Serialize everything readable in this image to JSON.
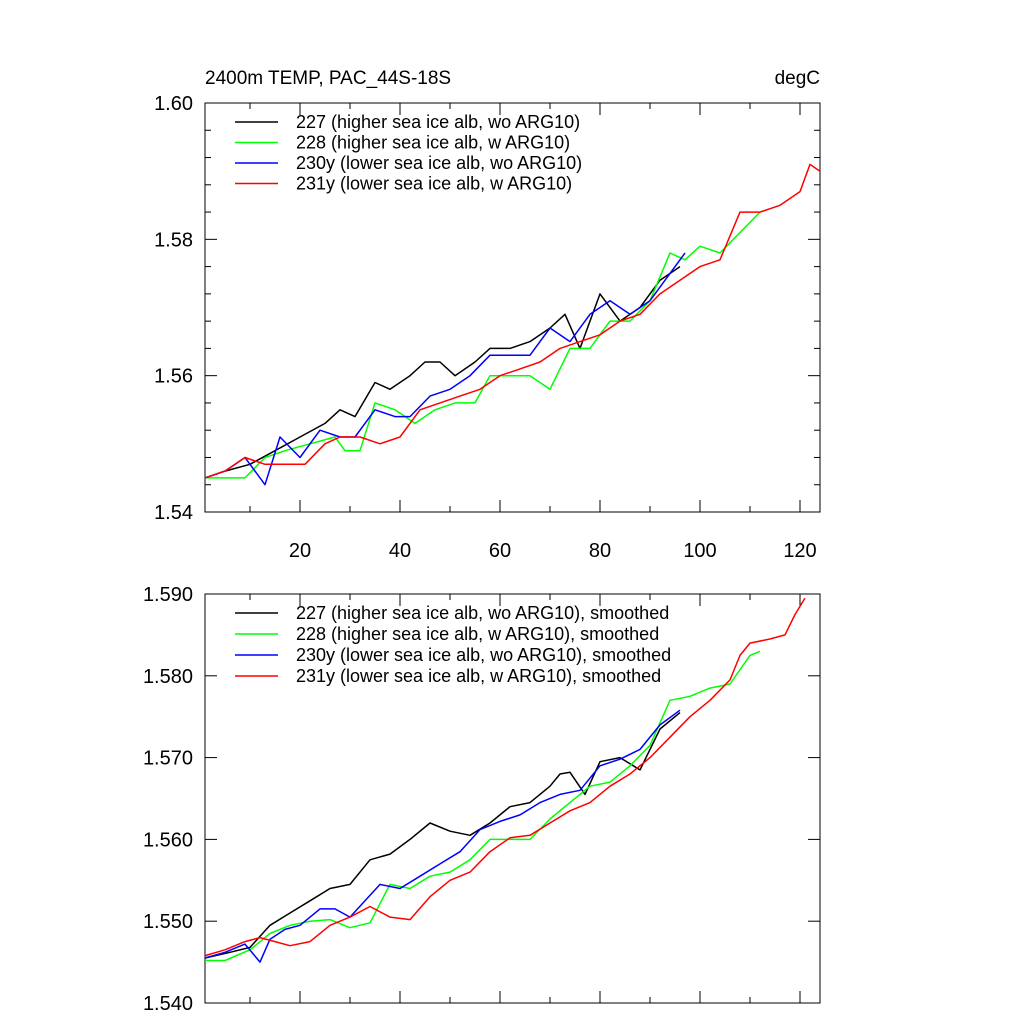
{
  "colors": {
    "s227": "#000000",
    "s228": "#00ff00",
    "s230y": "#0000ff",
    "s231y": "#ff0000"
  },
  "chart_data": [
    {
      "type": "line",
      "title_left": "2400m TEMP, PAC_44S-18S",
      "title_right": "degC",
      "xlim": [
        1,
        124
      ],
      "ylim": [
        1.54,
        1.6
      ],
      "x_ticks": [
        20,
        40,
        60,
        80,
        100,
        120
      ],
      "x_tick_labels": [
        "20",
        "40",
        "60",
        "80",
        "100",
        "120"
      ],
      "y_ticks": [
        1.54,
        1.56,
        1.58,
        1.6
      ],
      "y_tick_labels": [
        "1.54",
        "1.56",
        "1.58",
        "1.60"
      ],
      "legend_position": "top-left",
      "series": [
        {
          "name": "227 (higher sea ice alb, wo ARG10)",
          "color_key": "s227",
          "x": [
            1,
            5,
            10,
            15,
            20,
            25,
            28,
            31,
            35,
            38,
            42,
            45,
            48,
            51,
            55,
            58,
            62,
            66,
            70,
            73,
            76,
            80,
            84,
            88,
            92,
            96
          ],
          "y": [
            1.545,
            1.546,
            1.547,
            1.549,
            1.551,
            1.553,
            1.555,
            1.554,
            1.559,
            1.558,
            1.56,
            1.562,
            1.562,
            1.56,
            1.562,
            1.564,
            1.564,
            1.565,
            1.567,
            1.569,
            1.564,
            1.572,
            1.568,
            1.57,
            1.574,
            1.576
          ]
        },
        {
          "name": "228 (higher sea ice alb, w ARG10)",
          "color_key": "s228",
          "x": [
            1,
            5,
            9,
            13,
            17,
            22,
            27,
            29,
            32,
            35,
            39,
            43,
            47,
            51,
            55,
            58,
            62,
            66,
            70,
            74,
            78,
            82,
            86,
            90,
            94,
            97,
            100,
            104,
            108,
            112
          ],
          "y": [
            1.545,
            1.545,
            1.545,
            1.548,
            1.549,
            1.55,
            1.551,
            1.549,
            1.549,
            1.556,
            1.555,
            1.553,
            1.555,
            1.556,
            1.556,
            1.56,
            1.56,
            1.56,
            1.558,
            1.564,
            1.564,
            1.568,
            1.568,
            1.571,
            1.578,
            1.577,
            1.579,
            1.578,
            1.581,
            1.584
          ]
        },
        {
          "name": "230y (lower sea ice alb, wo ARG10)",
          "color_key": "s230y",
          "x": [
            1,
            5,
            9,
            13,
            16,
            20,
            24,
            28,
            31,
            35,
            39,
            42,
            46,
            50,
            54,
            58,
            62,
            66,
            70,
            74,
            78,
            82,
            86,
            90,
            94,
            97
          ],
          "y": [
            1.545,
            1.546,
            1.548,
            1.544,
            1.551,
            1.548,
            1.552,
            1.551,
            1.551,
            1.555,
            1.554,
            1.554,
            1.557,
            1.558,
            1.56,
            1.563,
            1.563,
            1.563,
            1.567,
            1.565,
            1.569,
            1.571,
            1.569,
            1.571,
            1.575,
            1.578
          ]
        },
        {
          "name": "231y (lower sea ice alb, w ARG10)",
          "color_key": "s231y",
          "x": [
            1,
            5,
            9,
            13,
            17,
            21,
            25,
            28,
            32,
            36,
            40,
            44,
            48,
            52,
            56,
            60,
            64,
            68,
            72,
            76,
            80,
            84,
            88,
            92,
            96,
            100,
            104,
            108,
            112,
            116,
            120,
            122,
            124
          ],
          "y": [
            1.545,
            1.546,
            1.548,
            1.547,
            1.547,
            1.547,
            1.55,
            1.551,
            1.551,
            1.55,
            1.551,
            1.555,
            1.556,
            1.557,
            1.558,
            1.56,
            1.561,
            1.562,
            1.564,
            1.565,
            1.566,
            1.568,
            1.569,
            1.572,
            1.574,
            1.576,
            1.577,
            1.584,
            1.584,
            1.585,
            1.587,
            1.591,
            1.59
          ]
        }
      ]
    },
    {
      "type": "line",
      "xlim": [
        1,
        124
      ],
      "ylim": [
        1.54,
        1.59
      ],
      "x_ticks": [
        20,
        40,
        60,
        80,
        100,
        120
      ],
      "y_ticks": [
        1.54,
        1.55,
        1.56,
        1.57,
        1.58,
        1.59
      ],
      "y_tick_labels": [
        "1.540",
        "1.550",
        "1.560",
        "1.570",
        "1.580",
        "1.590"
      ],
      "legend_position": "top-left",
      "series": [
        {
          "name": "227 (higher sea ice alb, wo ARG10), smoothed",
          "color_key": "s227",
          "x": [
            1,
            6,
            10,
            14,
            18,
            22,
            26,
            30,
            34,
            38,
            42,
            46,
            50,
            54,
            58,
            62,
            66,
            70,
            72,
            74,
            77,
            80,
            84,
            88,
            92,
            96
          ],
          "y": [
            1.5455,
            1.5462,
            1.5468,
            1.5495,
            1.551,
            1.5525,
            1.554,
            1.5545,
            1.5575,
            1.5582,
            1.56,
            1.562,
            1.561,
            1.5605,
            1.562,
            1.564,
            1.5645,
            1.5665,
            1.568,
            1.5682,
            1.5655,
            1.5695,
            1.57,
            1.5685,
            1.5735,
            1.5755
          ]
        },
        {
          "name": "228 (higher sea ice alb, w ARG10), smoothed",
          "color_key": "s228",
          "x": [
            1,
            5,
            10,
            14,
            18,
            22,
            26,
            30,
            34,
            38,
            42,
            46,
            50,
            54,
            58,
            62,
            66,
            70,
            74,
            78,
            82,
            86,
            90,
            94,
            98,
            102,
            106,
            110,
            112
          ],
          "y": [
            1.5452,
            1.5452,
            1.5465,
            1.5485,
            1.5495,
            1.55,
            1.5502,
            1.5492,
            1.5498,
            1.5545,
            1.554,
            1.5555,
            1.556,
            1.5575,
            1.56,
            1.56,
            1.56,
            1.5625,
            1.5645,
            1.5665,
            1.567,
            1.569,
            1.5715,
            1.577,
            1.5775,
            1.5785,
            1.579,
            1.5825,
            1.583
          ]
        },
        {
          "name": "230y (lower sea ice alb, wo ARG10), smoothed",
          "color_key": "s230y",
          "x": [
            1,
            5,
            9,
            12,
            14,
            17,
            20,
            24,
            27,
            30,
            33,
            36,
            40,
            44,
            48,
            52,
            56,
            60,
            64,
            68,
            72,
            76,
            80,
            84,
            88,
            92,
            96
          ],
          "y": [
            1.5455,
            1.5462,
            1.5472,
            1.545,
            1.5478,
            1.549,
            1.5495,
            1.5515,
            1.5515,
            1.5505,
            1.5525,
            1.5545,
            1.554,
            1.5555,
            1.557,
            1.5585,
            1.5612,
            1.5622,
            1.563,
            1.5645,
            1.5655,
            1.566,
            1.569,
            1.5698,
            1.571,
            1.574,
            1.5758
          ]
        },
        {
          "name": "231y (lower sea ice alb, w ARG10), smoothed",
          "color_key": "s231y",
          "x": [
            1,
            5,
            9,
            12,
            15,
            18,
            22,
            26,
            30,
            34,
            38,
            42,
            46,
            50,
            54,
            58,
            62,
            66,
            70,
            74,
            78,
            82,
            86,
            90,
            94,
            98,
            102,
            106,
            108,
            110,
            114,
            117,
            119,
            121
          ],
          "y": [
            1.5458,
            1.5465,
            1.5475,
            1.548,
            1.5475,
            1.547,
            1.5475,
            1.5495,
            1.5505,
            1.5518,
            1.5505,
            1.5502,
            1.553,
            1.555,
            1.556,
            1.5585,
            1.5602,
            1.5605,
            1.562,
            1.5635,
            1.5645,
            1.5665,
            1.568,
            1.57,
            1.5725,
            1.575,
            1.577,
            1.5795,
            1.5825,
            1.584,
            1.5845,
            1.585,
            1.5875,
            1.5895
          ]
        }
      ]
    }
  ]
}
